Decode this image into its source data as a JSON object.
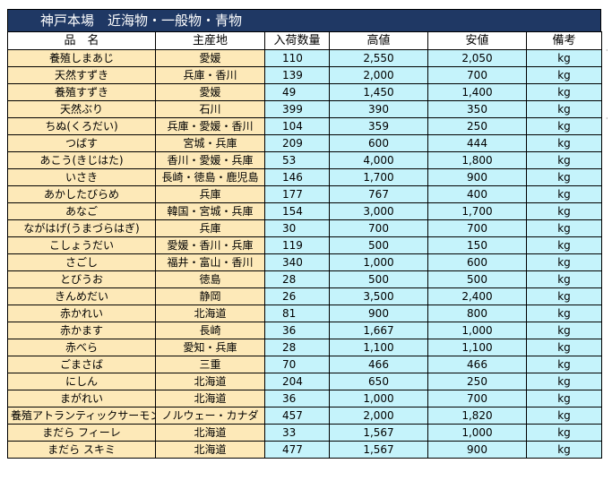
{
  "title": "神戸本場　近海物・一般物・青物",
  "headers": [
    "品　名",
    "主産地",
    "入荷数量",
    "高値",
    "安値",
    "備考"
  ],
  "rows": [
    {
      "name": "養殖しまあじ",
      "origin": "愛媛",
      "qty": "110",
      "high": "2,550",
      "low": "2,050",
      "note": "kg"
    },
    {
      "name": "天然すずき",
      "origin": "兵庫・香川",
      "qty": "139",
      "high": "2,000",
      "low": "700",
      "note": "kg"
    },
    {
      "name": "養殖すずき",
      "origin": "愛媛",
      "qty": "49",
      "high": "1,450",
      "low": "1,400",
      "note": "kg"
    },
    {
      "name": "天然ぶり",
      "origin": "石川",
      "qty": "399",
      "high": "390",
      "low": "350",
      "note": "kg"
    },
    {
      "name": "ちぬ(くろだい)",
      "origin": "兵庫・愛媛・香川",
      "qty": "104",
      "high": "359",
      "low": "250",
      "note": "kg"
    },
    {
      "name": "つばす",
      "origin": "宮城・兵庫",
      "qty": "209",
      "high": "600",
      "low": "444",
      "note": "kg"
    },
    {
      "name": "あこう(きじはた)",
      "origin": "香川・愛媛・兵庫",
      "qty": "53",
      "high": "4,000",
      "low": "1,800",
      "note": "kg"
    },
    {
      "name": "いさき",
      "origin": "長崎・徳島・鹿児島",
      "qty": "146",
      "high": "1,700",
      "low": "900",
      "note": "kg"
    },
    {
      "name": "あかしたびらめ",
      "origin": "兵庫",
      "qty": "177",
      "high": "767",
      "low": "400",
      "note": "kg"
    },
    {
      "name": "あなご",
      "origin": "韓国・宮城・兵庫",
      "qty": "154",
      "high": "3,000",
      "low": "1,700",
      "note": "kg"
    },
    {
      "name": "ながはげ(うまづらはぎ)",
      "origin": "兵庫",
      "qty": "30",
      "high": "700",
      "low": "700",
      "note": "kg"
    },
    {
      "name": "こしょうだい",
      "origin": "愛媛・香川・兵庫",
      "qty": "119",
      "high": "500",
      "low": "150",
      "note": "kg"
    },
    {
      "name": "さごし",
      "origin": "福井・富山・香川",
      "qty": "340",
      "high": "1,000",
      "low": "600",
      "note": "kg"
    },
    {
      "name": "とびうお",
      "origin": "徳島",
      "qty": "28",
      "high": "500",
      "low": "500",
      "note": "kg"
    },
    {
      "name": "きんめだい",
      "origin": "静岡",
      "qty": "26",
      "high": "3,500",
      "low": "2,400",
      "note": "kg"
    },
    {
      "name": "赤かれい",
      "origin": "北海道",
      "qty": "81",
      "high": "900",
      "low": "800",
      "note": "kg"
    },
    {
      "name": "赤かます",
      "origin": "長崎",
      "qty": "36",
      "high": "1,667",
      "low": "1,000",
      "note": "kg"
    },
    {
      "name": "赤べら",
      "origin": "愛知・兵庫",
      "qty": "28",
      "high": "1,100",
      "low": "1,100",
      "note": "kg"
    },
    {
      "name": "ごまさば",
      "origin": "三重",
      "qty": "70",
      "high": "466",
      "low": "466",
      "note": "kg"
    },
    {
      "name": "にしん",
      "origin": "北海道",
      "qty": "204",
      "high": "650",
      "low": "250",
      "note": "kg"
    },
    {
      "name": "まがれい",
      "origin": "北海道",
      "qty": "36",
      "high": "1,000",
      "low": "700",
      "note": "kg"
    },
    {
      "name": "養殖アトランティックサーモン",
      "origin": "ノルウェー・カナダ",
      "qty": "457",
      "high": "2,000",
      "low": "1,820",
      "note": "kg"
    },
    {
      "name": "まだら フィーレ",
      "origin": "北海道",
      "qty": "33",
      "high": "1,567",
      "low": "1,000",
      "note": "kg"
    },
    {
      "name": "まだら スキミ",
      "origin": "北海道",
      "qty": "477",
      "high": "1,567",
      "low": "900",
      "note": "kg"
    }
  ],
  "colors": {
    "title_bg": "#1f3864",
    "left_cols_bg": "#fde9b8",
    "right_cols_bg": "#c5f3fb"
  }
}
